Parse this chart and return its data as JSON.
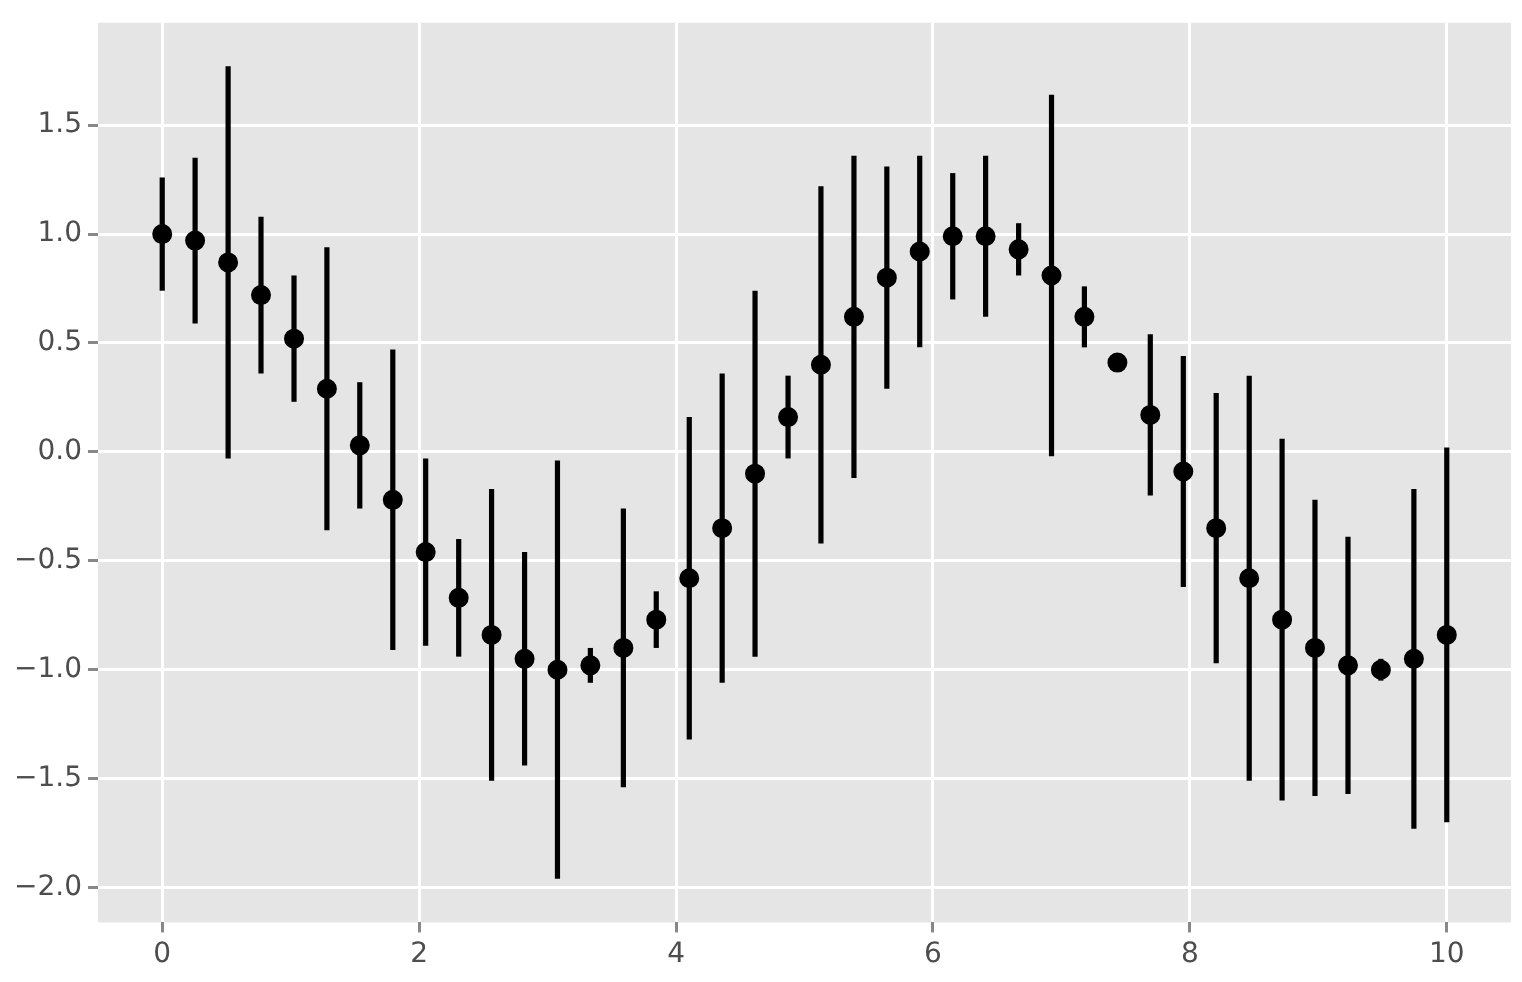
{
  "chart_data": {
    "type": "scatter",
    "marker": "circle",
    "grid": true,
    "legend": false,
    "x": [
      0,
      0.256,
      0.513,
      0.769,
      1.026,
      1.282,
      1.538,
      1.795,
      2.051,
      2.308,
      2.564,
      2.821,
      3.077,
      3.333,
      3.59,
      3.846,
      4.103,
      4.359,
      4.615,
      4.872,
      5.128,
      5.385,
      5.641,
      5.897,
      6.154,
      6.41,
      6.667,
      6.923,
      7.179,
      7.436,
      7.692,
      7.949,
      8.205,
      8.462,
      8.718,
      8.974,
      9.231,
      9.487,
      9.744,
      10
    ],
    "series": [
      {
        "color": "#000000",
        "values": [
          1.0,
          0.97,
          0.87,
          0.72,
          0.52,
          0.29,
          0.03,
          -0.22,
          -0.46,
          -0.67,
          -0.84,
          -0.95,
          -1.0,
          -0.98,
          -0.9,
          -0.77,
          -0.58,
          -0.35,
          -0.1,
          0.16,
          0.4,
          0.62,
          0.8,
          0.92,
          0.99,
          0.99,
          0.93,
          0.81,
          0.62,
          0.41,
          0.17,
          -0.09,
          -0.35,
          -0.58,
          -0.77,
          -0.9,
          -0.98,
          -1.0,
          -0.95,
          -0.84
        ],
        "errors": [
          0.26,
          0.38,
          0.9,
          0.36,
          0.29,
          0.65,
          0.29,
          0.69,
          0.43,
          0.27,
          0.67,
          0.49,
          0.96,
          0.08,
          0.64,
          0.13,
          0.74,
          0.71,
          0.84,
          0.19,
          0.82,
          0.74,
          0.51,
          0.44,
          0.29,
          0.37,
          0.12,
          0.83,
          0.14,
          0.02,
          0.37,
          0.53,
          0.62,
          0.93,
          0.83,
          0.68,
          0.59,
          0.05,
          0.78,
          0.86
        ]
      }
    ],
    "xlim": [
      -0.5,
      10.5
    ],
    "xticks": [
      0,
      2,
      4,
      6,
      8,
      10
    ],
    "ylim": [
      -2.16,
      1.97
    ],
    "yticks": [
      {
        "value": -2,
        "label": "−2.0"
      },
      {
        "value": -1.5,
        "label": "−1.5"
      },
      {
        "value": -1,
        "label": "−1.0"
      },
      {
        "value": -0.5,
        "label": "−0.5"
      },
      {
        "value": 0,
        "label": "0.0"
      },
      {
        "value": 0.5,
        "label": "0.5"
      },
      {
        "value": 1,
        "label": "1.0"
      },
      {
        "value": 1.5,
        "label": "1.5"
      }
    ]
  }
}
